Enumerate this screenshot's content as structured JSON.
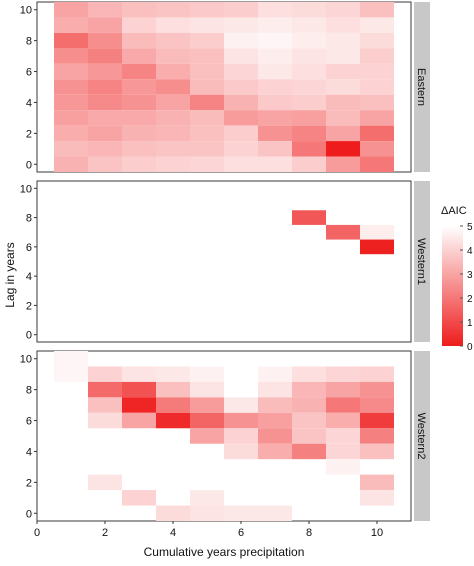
{
  "chart_data": {
    "type": "heatmap",
    "xlabel": "Cumulative years precipitation",
    "ylabel": "Lag in years",
    "xlim": [
      0,
      11
    ],
    "ylim": [
      -0.5,
      10.5
    ],
    "x_ticks": [
      "0",
      "2",
      "4",
      "6",
      "8",
      "10"
    ],
    "y_ticks": [
      "0",
      "2",
      "4",
      "6",
      "8",
      "10"
    ],
    "legend": {
      "title": "ΔAIC",
      "ticks": [
        "0",
        "1",
        "2",
        "3",
        "4",
        "5"
      ],
      "min": 0,
      "max": 5,
      "color_low": "#ee1c1c",
      "color_high": "#ffffff",
      "position": "right"
    },
    "panels": [
      {
        "name": "Eastern",
        "cells": [
          [
            1,
            10,
            3.0
          ],
          [
            2,
            10,
            3.4
          ],
          [
            3,
            10,
            3.6
          ],
          [
            4,
            10,
            3.7
          ],
          [
            5,
            10,
            3.8
          ],
          [
            6,
            10,
            3.9
          ],
          [
            7,
            10,
            4.3
          ],
          [
            8,
            10,
            4.2
          ],
          [
            9,
            10,
            4.1
          ],
          [
            10,
            10,
            3.6
          ],
          [
            1,
            9,
            3.2
          ],
          [
            2,
            9,
            3.0
          ],
          [
            3,
            9,
            4.0
          ],
          [
            4,
            9,
            4.3
          ],
          [
            5,
            9,
            4.4
          ],
          [
            6,
            9,
            4.5
          ],
          [
            7,
            9,
            4.6
          ],
          [
            8,
            9,
            4.5
          ],
          [
            9,
            9,
            4.3
          ],
          [
            10,
            9,
            4.5
          ],
          [
            1,
            8,
            1.8
          ],
          [
            2,
            8,
            2.5
          ],
          [
            3,
            8,
            3.5
          ],
          [
            4,
            8,
            3.7
          ],
          [
            5,
            8,
            3.9
          ],
          [
            6,
            8,
            4.7
          ],
          [
            7,
            8,
            4.8
          ],
          [
            8,
            8,
            4.6
          ],
          [
            9,
            8,
            4.5
          ],
          [
            10,
            8,
            4.2
          ],
          [
            1,
            7,
            2.5
          ],
          [
            2,
            7,
            2.2
          ],
          [
            3,
            7,
            3.1
          ],
          [
            4,
            7,
            3.5
          ],
          [
            5,
            7,
            3.6
          ],
          [
            6,
            7,
            4.4
          ],
          [
            7,
            7,
            4.6
          ],
          [
            8,
            7,
            4.4
          ],
          [
            9,
            7,
            4.5
          ],
          [
            10,
            7,
            3.9
          ],
          [
            1,
            6,
            3.0
          ],
          [
            2,
            6,
            2.7
          ],
          [
            3,
            6,
            2.3
          ],
          [
            4,
            6,
            3.2
          ],
          [
            5,
            6,
            3.6
          ],
          [
            6,
            6,
            4.1
          ],
          [
            7,
            6,
            4.5
          ],
          [
            8,
            6,
            4.3
          ],
          [
            9,
            6,
            4.0
          ],
          [
            10,
            6,
            4.0
          ],
          [
            1,
            5,
            2.6
          ],
          [
            2,
            5,
            2.3
          ],
          [
            3,
            5,
            2.7
          ],
          [
            4,
            5,
            2.5
          ],
          [
            5,
            5,
            3.5
          ],
          [
            6,
            5,
            3.8
          ],
          [
            7,
            5,
            4.0
          ],
          [
            8,
            5,
            4.1
          ],
          [
            9,
            5,
            4.2
          ],
          [
            10,
            5,
            4.0
          ],
          [
            1,
            4,
            2.7
          ],
          [
            2,
            4,
            2.4
          ],
          [
            3,
            4,
            2.6
          ],
          [
            4,
            4,
            3.0
          ],
          [
            5,
            4,
            2.3
          ],
          [
            6,
            4,
            3.3
          ],
          [
            7,
            4,
            3.8
          ],
          [
            8,
            4,
            3.9
          ],
          [
            9,
            4,
            3.5
          ],
          [
            10,
            4,
            3.6
          ],
          [
            1,
            3,
            2.9
          ],
          [
            2,
            3,
            3.1
          ],
          [
            3,
            3,
            3.1
          ],
          [
            4,
            3,
            3.3
          ],
          [
            5,
            3,
            3.5
          ],
          [
            6,
            3,
            2.8
          ],
          [
            7,
            3,
            3.0
          ],
          [
            8,
            3,
            2.9
          ],
          [
            9,
            3,
            3.5
          ],
          [
            10,
            3,
            3.0
          ],
          [
            1,
            2,
            3.2
          ],
          [
            2,
            2,
            3.0
          ],
          [
            3,
            2,
            3.3
          ],
          [
            4,
            2,
            3.4
          ],
          [
            5,
            2,
            3.6
          ],
          [
            6,
            2,
            3.9
          ],
          [
            7,
            2,
            2.6
          ],
          [
            8,
            2,
            2.3
          ],
          [
            9,
            2,
            3.0
          ],
          [
            10,
            2,
            1.8
          ],
          [
            1,
            1,
            3.5
          ],
          [
            2,
            1,
            3.4
          ],
          [
            3,
            1,
            3.6
          ],
          [
            4,
            1,
            3.7
          ],
          [
            5,
            1,
            3.7
          ],
          [
            6,
            1,
            4.0
          ],
          [
            7,
            1,
            3.7
          ],
          [
            8,
            1,
            2.0
          ],
          [
            9,
            1,
            0.0
          ],
          [
            10,
            1,
            2.6
          ],
          [
            1,
            0,
            3.3
          ],
          [
            2,
            0,
            3.7
          ],
          [
            3,
            0,
            3.9
          ],
          [
            4,
            0,
            4.0
          ],
          [
            5,
            0,
            4.1
          ],
          [
            6,
            0,
            4.3
          ],
          [
            7,
            0,
            4.3
          ],
          [
            8,
            0,
            3.9
          ],
          [
            9,
            0,
            2.8
          ],
          [
            10,
            0,
            2.0
          ]
        ]
      },
      {
        "name": "Western1",
        "cells": [
          [
            8,
            8,
            1.3
          ],
          [
            9,
            7,
            1.6
          ],
          [
            10,
            7,
            4.6
          ],
          [
            10,
            6,
            0.1
          ]
        ]
      },
      {
        "name": "Western2",
        "cells": [
          [
            1,
            10,
            4.8
          ],
          [
            1,
            9,
            4.8
          ],
          [
            2,
            9,
            4.0
          ],
          [
            3,
            9,
            4.4
          ],
          [
            4,
            9,
            4.5
          ],
          [
            5,
            9,
            4.7
          ],
          [
            7,
            9,
            4.7
          ],
          [
            8,
            9,
            4.3
          ],
          [
            9,
            9,
            4.1
          ],
          [
            10,
            9,
            4.0
          ],
          [
            2,
            8,
            1.7
          ],
          [
            3,
            8,
            1.2
          ],
          [
            4,
            8,
            3.6
          ],
          [
            5,
            8,
            4.4
          ],
          [
            7,
            8,
            4.4
          ],
          [
            8,
            8,
            3.4
          ],
          [
            9,
            8,
            3.0
          ],
          [
            10,
            8,
            2.6
          ],
          [
            2,
            7,
            3.6
          ],
          [
            3,
            7,
            0.2
          ],
          [
            4,
            7,
            2.1
          ],
          [
            5,
            7,
            2.8
          ],
          [
            6,
            7,
            4.5
          ],
          [
            7,
            7,
            3.5
          ],
          [
            8,
            7,
            3.3
          ],
          [
            9,
            7,
            2.0
          ],
          [
            10,
            7,
            2.4
          ],
          [
            2,
            6,
            4.2
          ],
          [
            3,
            6,
            3.0
          ],
          [
            4,
            6,
            0.3
          ],
          [
            5,
            6,
            1.6
          ],
          [
            6,
            6,
            2.6
          ],
          [
            7,
            6,
            2.9
          ],
          [
            8,
            6,
            3.7
          ],
          [
            9,
            6,
            3.2
          ],
          [
            10,
            6,
            0.7
          ],
          [
            5,
            5,
            3.0
          ],
          [
            6,
            5,
            4.0
          ],
          [
            7,
            5,
            2.6
          ],
          [
            8,
            5,
            3.7
          ],
          [
            9,
            5,
            4.1
          ],
          [
            10,
            5,
            2.2
          ],
          [
            6,
            4,
            4.2
          ],
          [
            7,
            4,
            3.2
          ],
          [
            8,
            4,
            2.2
          ],
          [
            9,
            4,
            4.1
          ],
          [
            10,
            4,
            3.6
          ],
          [
            9,
            3,
            4.7
          ],
          [
            2,
            2,
            4.4
          ],
          [
            10,
            2,
            3.5
          ],
          [
            3,
            1,
            4.0
          ],
          [
            5,
            1,
            4.5
          ],
          [
            10,
            1,
            4.4
          ],
          [
            4,
            0,
            4.2
          ],
          [
            5,
            0,
            4.4
          ],
          [
            6,
            0,
            4.5
          ],
          [
            7,
            0,
            4.5
          ]
        ]
      }
    ]
  }
}
